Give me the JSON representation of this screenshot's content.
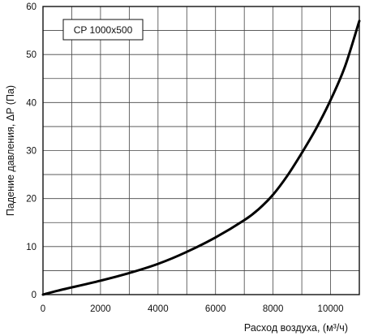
{
  "chart_data": {
    "type": "line",
    "title": "",
    "xlabel": "Расход воздуха, (м³/ч)",
    "ylabel": "Падение давления, ΔP (Па)",
    "xlim": [
      0,
      11000
    ],
    "ylim": [
      0,
      60
    ],
    "x_ticks": [
      0,
      2000,
      4000,
      6000,
      8000,
      10000
    ],
    "y_ticks": [
      0,
      10,
      20,
      30,
      40,
      50,
      60
    ],
    "x_grid_step": 1000,
    "y_grid_step": 5,
    "grid": true,
    "series": [
      {
        "name": "CP 1000x500",
        "x": [
          0,
          500,
          1000,
          2000,
          3000,
          4000,
          5000,
          6000,
          7000,
          7500,
          8000,
          8500,
          9000,
          9500,
          10000,
          10500,
          11000
        ],
        "y": [
          0,
          0.8,
          1.5,
          2.9,
          4.5,
          6.4,
          8.9,
          11.9,
          15.5,
          17.8,
          20.8,
          24.8,
          29.5,
          34.6,
          40.5,
          47.5,
          57
        ]
      }
    ]
  }
}
